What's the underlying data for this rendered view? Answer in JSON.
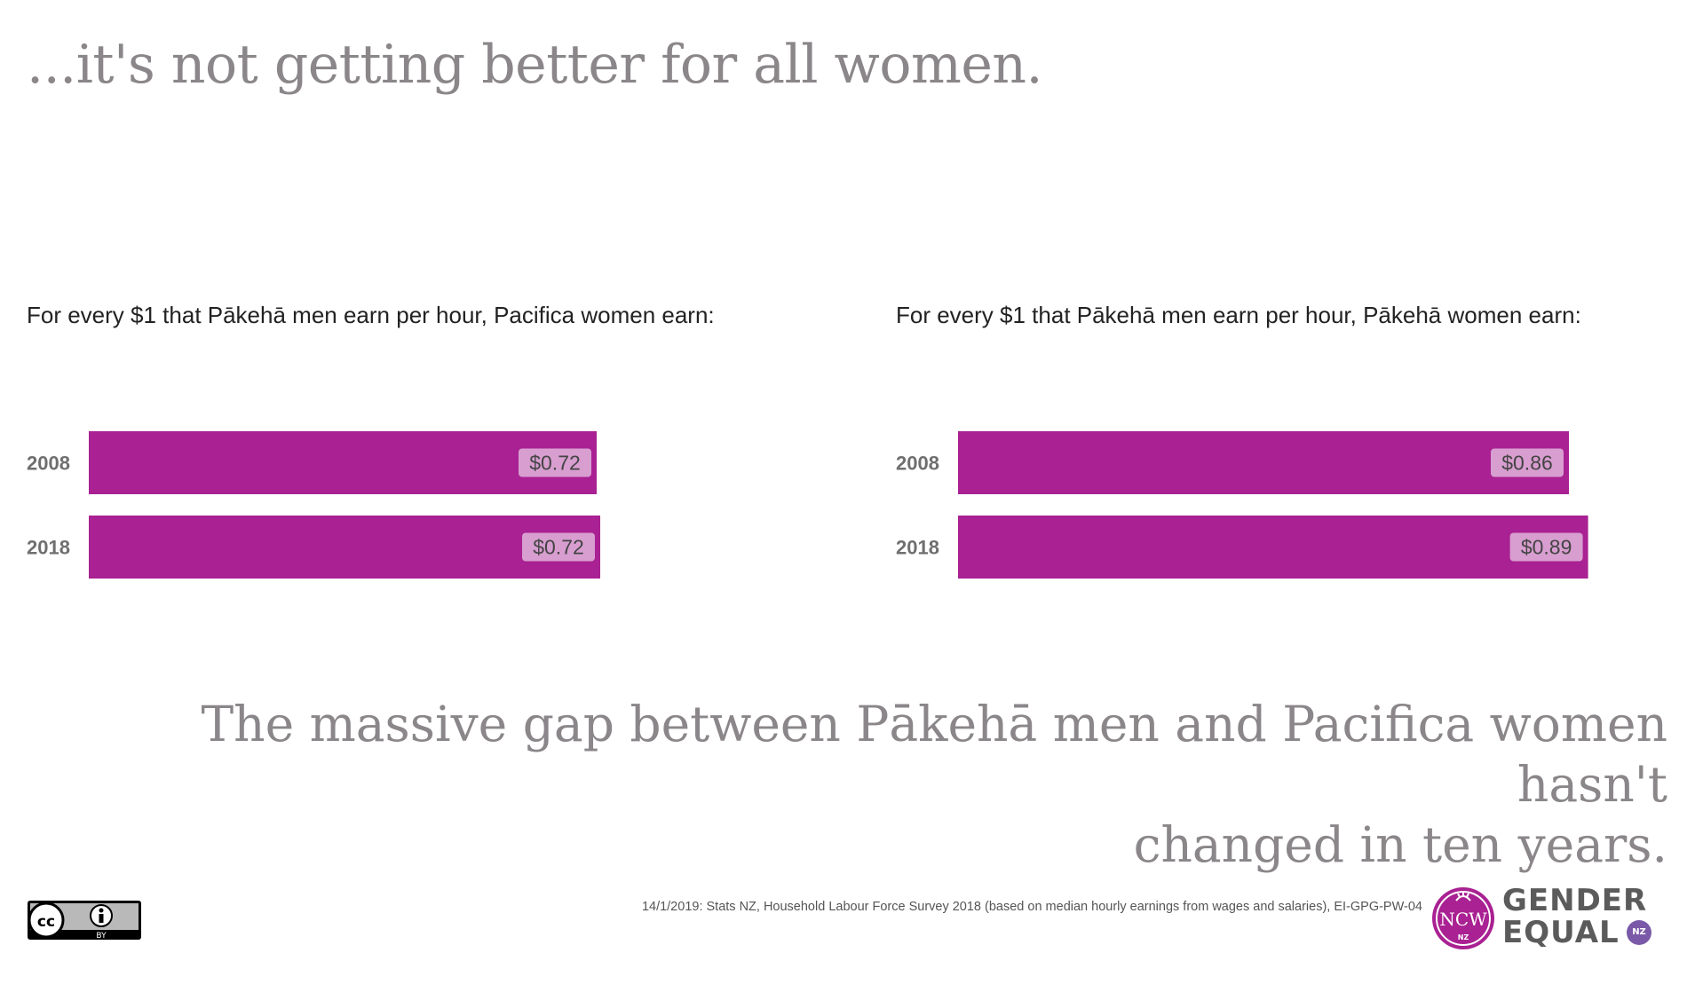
{
  "headline": "...it's not getting better for all women.",
  "colors": {
    "bar": "#a92192",
    "label_bg": "#d89ed0",
    "grey_text": "#8a8689"
  },
  "chart_data": [
    {
      "type": "bar",
      "orientation": "horizontal",
      "title": "For every $1 that Pākehā men earn per hour, Pacifica women earn:",
      "categories": [
        "2008",
        "2018"
      ],
      "values": [
        0.715,
        0.72
      ],
      "data_labels": [
        "$0.72",
        "$0.72"
      ],
      "xlim": [
        0,
        1
      ]
    },
    {
      "type": "bar",
      "orientation": "horizontal",
      "title": "For every $1 that Pākehā men earn per hour, Pākehā women earn:",
      "categories": [
        "2008",
        "2018"
      ],
      "values": [
        0.86,
        0.887
      ],
      "data_labels": [
        "$0.86",
        "$0.89"
      ],
      "xlim": [
        0,
        1
      ]
    }
  ],
  "conclusion": {
    "line1": "The massive gap between Pākehā men and Pacifica women hasn't",
    "line2": "changed in ten years."
  },
  "footer": {
    "license_label": "BY",
    "license_icon": "cc-by-icon",
    "source": "14/1/2019: Stats NZ, Household Labour Force Survey 2018 (based on median hourly earnings from wages and salaries), EI-GPG-PW-04"
  },
  "logo": {
    "line1": "GENDER",
    "line2": "EQUAL",
    "badge": "NZ",
    "mark_text": "NCW",
    "mark_sub": "NZ"
  }
}
